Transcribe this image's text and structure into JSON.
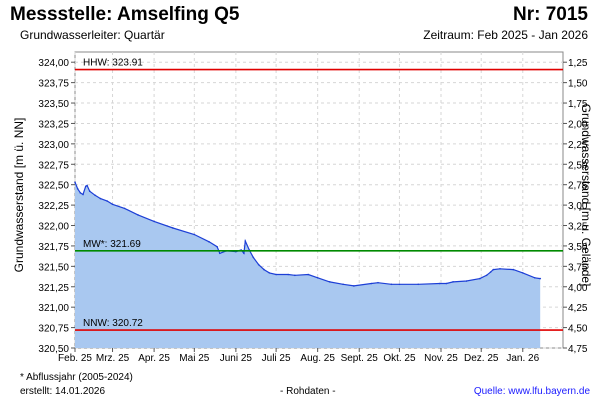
{
  "header": {
    "title": "Messstelle: Amselfing Q5",
    "station_nr": "Nr: 7015",
    "aquifer": "Grundwasserleiter: Quartär",
    "period": "Zeitraum: Feb 2025 - Jan 2026"
  },
  "footer": {
    "footnote": "* Abflussjahr (2005-2024)",
    "created": "erstellt:  14.01.2026",
    "rawdata": "- Rohdaten -",
    "source": "Quelle: www.lfu.bayern.de"
  },
  "colors": {
    "area_fill": "#a9c8f0",
    "line": "#1d3fd6",
    "hhw": "#e00000",
    "nnw": "#e00000",
    "mw": "#008a00",
    "grid": "#d6d6d6"
  },
  "chart_data": {
    "type": "area",
    "ylabel": "Grundwasserstand [m ü. NN]",
    "ylabel_right": "Grundwasserstand [m u. Gelände]",
    "ylim": [
      320.5,
      324.125
    ],
    "yticks": [
      "320,50",
      "320,75",
      "321,00",
      "321,25",
      "321,50",
      "321,75",
      "322,00",
      "322,25",
      "322,50",
      "322,75",
      "323,00",
      "323,25",
      "323,50",
      "323,75",
      "324,00"
    ],
    "yticks_right": [
      "4,75",
      "4,50",
      "4,25",
      "4,00",
      "3,75",
      "3,50",
      "3,25",
      "3,00",
      "2,75",
      "2,50",
      "2,25",
      "2,00",
      "1,75",
      "1,50",
      "1,25"
    ],
    "right_axis_offset": 325.25,
    "xlim": [
      "2025-02-01",
      "2026-01-31"
    ],
    "xticks": [
      "Feb. 25",
      "Mrz. 25",
      "Apr. 25",
      "Mai 25",
      "Juni 25",
      "Juli 25",
      "Aug. 25",
      "Sept. 25",
      "Okt. 25",
      "Nov. 25",
      "Dez. 25",
      "Jan. 26"
    ],
    "xtick_dates": [
      "2025-02-01",
      "2025-03-01",
      "2025-04-01",
      "2025-05-01",
      "2025-06-01",
      "2025-07-01",
      "2025-08-01",
      "2025-09-01",
      "2025-10-01",
      "2025-11-01",
      "2025-12-01",
      "2026-01-01"
    ],
    "grid": true,
    "reference_lines": [
      {
        "key": "hhw",
        "label": "HHW: 323.91",
        "value": 323.91
      },
      {
        "key": "mw",
        "label": "MW*: 321.69",
        "value": 321.69
      },
      {
        "key": "nnw",
        "label": "NNW: 320.72",
        "value": 320.72
      }
    ],
    "series": [
      {
        "points": [
          [
            "2025-02-01",
            322.53
          ],
          [
            "2025-02-03",
            322.45
          ],
          [
            "2025-02-05",
            322.4
          ],
          [
            "2025-02-07",
            322.38
          ],
          [
            "2025-02-09",
            322.48
          ],
          [
            "2025-02-10",
            322.49
          ],
          [
            "2025-02-12",
            322.42
          ],
          [
            "2025-02-16",
            322.37
          ],
          [
            "2025-02-20",
            322.33
          ],
          [
            "2025-02-25",
            322.3
          ],
          [
            "2025-03-01",
            322.26
          ],
          [
            "2025-03-10",
            322.21
          ],
          [
            "2025-03-20",
            322.13
          ],
          [
            "2025-04-01",
            322.05
          ],
          [
            "2025-04-15",
            321.97
          ],
          [
            "2025-05-01",
            321.89
          ],
          [
            "2025-05-12",
            321.8
          ],
          [
            "2025-05-18",
            321.74
          ],
          [
            "2025-05-20",
            321.66
          ],
          [
            "2025-05-25",
            321.69
          ],
          [
            "2025-06-01",
            321.68
          ],
          [
            "2025-06-05",
            321.7
          ],
          [
            "2025-06-07",
            321.66
          ],
          [
            "2025-06-08",
            321.81
          ],
          [
            "2025-06-11",
            321.7
          ],
          [
            "2025-06-14",
            321.61
          ],
          [
            "2025-06-18",
            321.52
          ],
          [
            "2025-06-22",
            321.46
          ],
          [
            "2025-06-26",
            321.42
          ],
          [
            "2025-07-01",
            321.4
          ],
          [
            "2025-07-10",
            321.4
          ],
          [
            "2025-07-15",
            321.39
          ],
          [
            "2025-07-25",
            321.4
          ],
          [
            "2025-08-01",
            321.36
          ],
          [
            "2025-08-10",
            321.31
          ],
          [
            "2025-08-20",
            321.28
          ],
          [
            "2025-08-28",
            321.26
          ],
          [
            "2025-09-10",
            321.29
          ],
          [
            "2025-09-15",
            321.3
          ],
          [
            "2025-09-25",
            321.28
          ],
          [
            "2025-10-01",
            321.28
          ],
          [
            "2025-10-15",
            321.28
          ],
          [
            "2025-10-31",
            321.29
          ],
          [
            "2025-11-05",
            321.29
          ],
          [
            "2025-11-10",
            321.31
          ],
          [
            "2025-11-20",
            321.32
          ],
          [
            "2025-11-30",
            321.35
          ],
          [
            "2025-12-05",
            321.39
          ],
          [
            "2025-12-08",
            321.43
          ],
          [
            "2025-12-10",
            321.46
          ],
          [
            "2025-12-15",
            321.47
          ],
          [
            "2025-12-25",
            321.46
          ],
          [
            "2026-01-01",
            321.42
          ],
          [
            "2026-01-10",
            321.36
          ],
          [
            "2026-01-14",
            321.35
          ]
        ]
      }
    ]
  }
}
